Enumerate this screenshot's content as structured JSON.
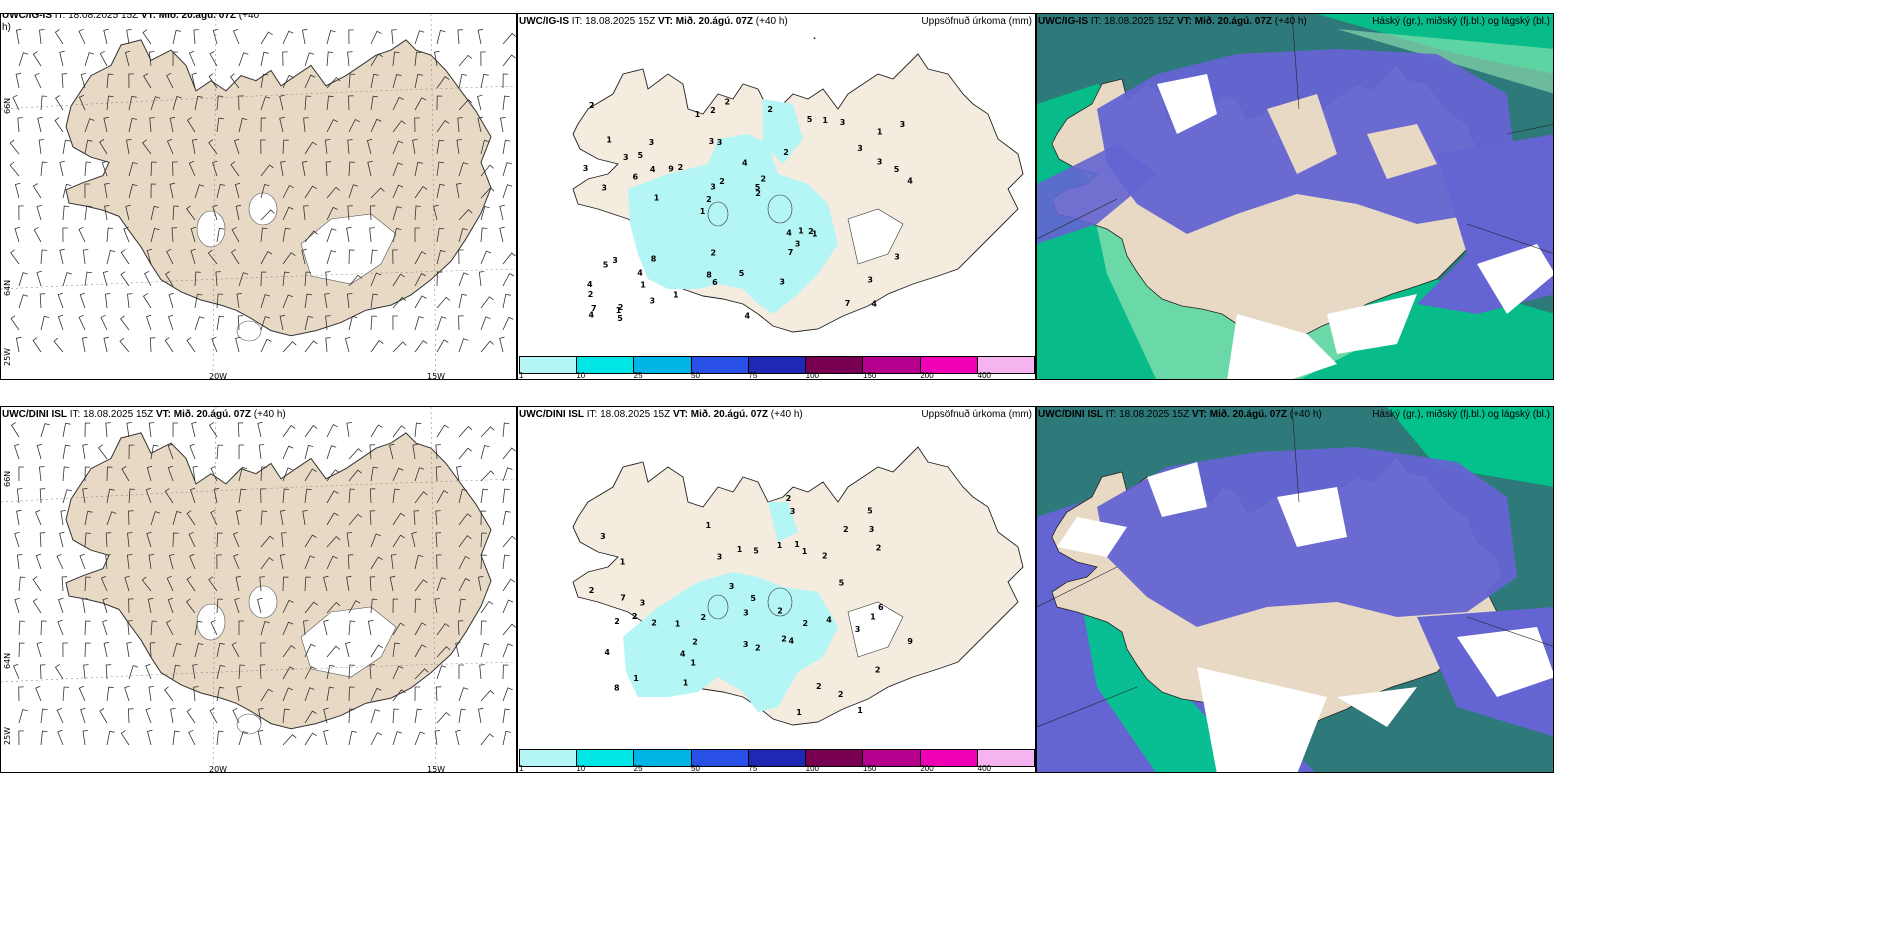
{
  "panels": {
    "wind_top": {
      "model": "UWC/IG-IS",
      "it_label": "IT: 18.08.2025 15Z",
      "vt_label": "VT: Mið. 20.ágú. 07Z",
      "lead": "(+40",
      "lead2": "h)"
    },
    "precip_top": {
      "model": "UWC/IG-IS",
      "it_label": "IT: 18.08.2025 15Z",
      "vt_label": "VT: Mið. 20.ágú. 07Z",
      "lead": "(+40 h)",
      "field": "Uppsöfnuð úrkoma (mm)"
    },
    "cloud_top": {
      "model": "UWC/IG-IS",
      "it_label": "IT: 18.08.2025 15Z",
      "vt_label": "VT: Mið. 20.ágú. 07Z",
      "lead": "(+40 h)",
      "field": "Háský (gr.), miðský (fj.bl.) og lágský (bl.)"
    },
    "wind_bot": {
      "model": "UWC/DINI ISL",
      "it_label": "IT: 18.08.2025 15Z",
      "vt_label": "VT: Mið. 20.ágú. 07Z",
      "lead": "(+40 h)"
    },
    "precip_bot": {
      "model": "UWC/DINI ISL",
      "it_label": "IT: 18.08.2025 15Z",
      "vt_label": "VT: Mið. 20.ágú. 07Z",
      "lead": "(+40 h)",
      "field": "Uppsöfnuð úrkoma (mm)"
    },
    "cloud_bot": {
      "model": "UWC/DINI ISL",
      "it_label": "IT: 18.08.2025 15Z",
      "vt_label": "VT: Mið. 20.ágú. 07Z",
      "lead": "(+40 h)",
      "field": "Háský (gr.), miðský (fj.bl.) og lágský (bl.)"
    }
  },
  "axes": {
    "lat_66": "66N",
    "lat_64": "64N",
    "lon_25": "25W",
    "lon_20": "20W",
    "lon_15": "15W"
  },
  "colorbar": {
    "ticks": [
      "1",
      "10",
      "25",
      "50",
      "75",
      "100",
      "150",
      "200",
      "400"
    ],
    "colors": [
      "#b4f5f5",
      "#00e6e6",
      "#00b4e6",
      "#2850e6",
      "#1e28b4",
      "#780050",
      "#b4008c",
      "#f000b4",
      "#f5b4f0"
    ]
  },
  "precip_values_top": [
    "4",
    "3",
    "1",
    "1",
    "2",
    "2",
    "3",
    "4",
    "3",
    "2",
    "2",
    "1",
    "3",
    "2",
    "1",
    "1",
    "2",
    "4",
    "4",
    "3",
    "2",
    "8",
    "3",
    "3",
    "5",
    "8",
    "7",
    "3",
    "2",
    "4",
    "9",
    "6",
    "7",
    "3",
    "5",
    "5",
    "7",
    "6",
    "2",
    "5",
    "3",
    "3",
    "3",
    "3",
    "4",
    "5",
    "4",
    "5",
    "3",
    "2",
    "1",
    "3",
    "5",
    "1",
    "1",
    "2",
    "1",
    "2",
    "3",
    "2",
    "1",
    "1",
    "4",
    "4",
    "2",
    "3"
  ],
  "precip_values_bot": [
    "1",
    "2",
    "2",
    "3",
    "2",
    "1",
    "1",
    "1",
    "2",
    "1",
    "1",
    "2",
    "1",
    "1",
    "2",
    "4",
    "4",
    "5",
    "2",
    "8",
    "5",
    "5",
    "5",
    "9",
    "6",
    "7",
    "2",
    "3",
    "3",
    "3",
    "4",
    "2",
    "4",
    "1",
    "3",
    "3",
    "1",
    "2",
    "2",
    "1",
    "2",
    "2",
    "1",
    "2",
    "2",
    "3",
    "2",
    "3",
    "1",
    "3",
    "2"
  ],
  "colors": {
    "land": "#f5ece0",
    "land_wind": "#e8d9c5",
    "precip_light": "#b4f5f5",
    "ocean": "#2e7a7a",
    "mid_cloud": "#6464d2",
    "low_cloud": "#ffffff",
    "high_cloud": "#00c88c",
    "glacier_green": "#96e6b4"
  }
}
